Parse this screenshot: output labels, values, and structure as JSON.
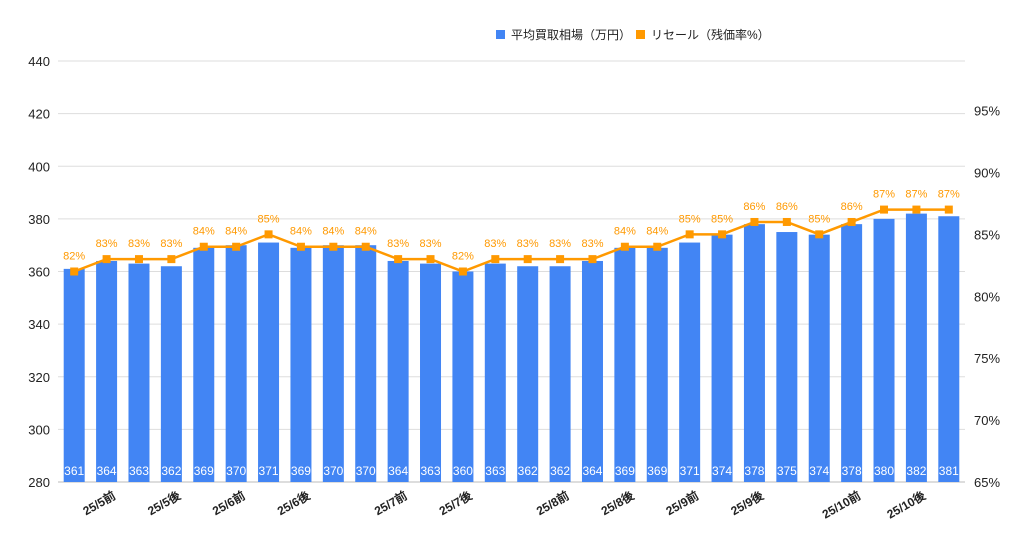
{
  "chart_data": {
    "type": "bar+line",
    "title": "",
    "legend": {
      "position": "top-right",
      "items": [
        {
          "label": "平均買取相場（万円）",
          "color": "#4285f4"
        },
        {
          "label": "リセール（残価率%）",
          "color": "#ff9900"
        }
      ]
    },
    "categories": [
      "",
      "25/5前",
      "",
      "25/5後",
      "",
      "25/6前",
      "",
      "25/6後",
      "",
      "",
      "25/7前",
      "",
      "25/7後",
      "",
      "",
      "25/8前",
      "",
      "25/8後",
      "",
      "25/9前",
      "",
      "25/9後",
      "",
      "",
      "25/10前",
      "",
      "25/10後",
      ""
    ],
    "series": [
      {
        "name": "平均買取相場（万円）",
        "type": "bar",
        "axis": "left",
        "color": "#4285f4",
        "values": [
          361,
          364,
          363,
          362,
          369,
          370,
          371,
          369,
          370,
          370,
          364,
          363,
          360,
          363,
          362,
          362,
          364,
          369,
          369,
          371,
          374,
          378,
          375,
          374,
          378,
          380,
          382,
          381
        ]
      },
      {
        "name": "リセール（残価率%）",
        "type": "line",
        "axis": "right",
        "color": "#ff9900",
        "values": [
          82,
          83,
          83,
          83,
          84,
          84,
          85,
          84,
          84,
          84,
          83,
          83,
          82,
          83,
          83,
          83,
          83,
          84,
          84,
          85,
          85,
          86,
          86,
          85,
          86,
          87,
          87,
          87
        ]
      }
    ],
    "left_axis": {
      "ylim": [
        280,
        440
      ],
      "ticks": [
        "280",
        "300",
        "320",
        "340",
        "360",
        "380",
        "400",
        "420",
        "440"
      ]
    },
    "right_axis": {
      "ylim": [
        65,
        99
      ],
      "ticks": [
        "65%",
        "70%",
        "75%",
        "80%",
        "85%",
        "90%",
        "95%"
      ]
    },
    "grid": true
  }
}
